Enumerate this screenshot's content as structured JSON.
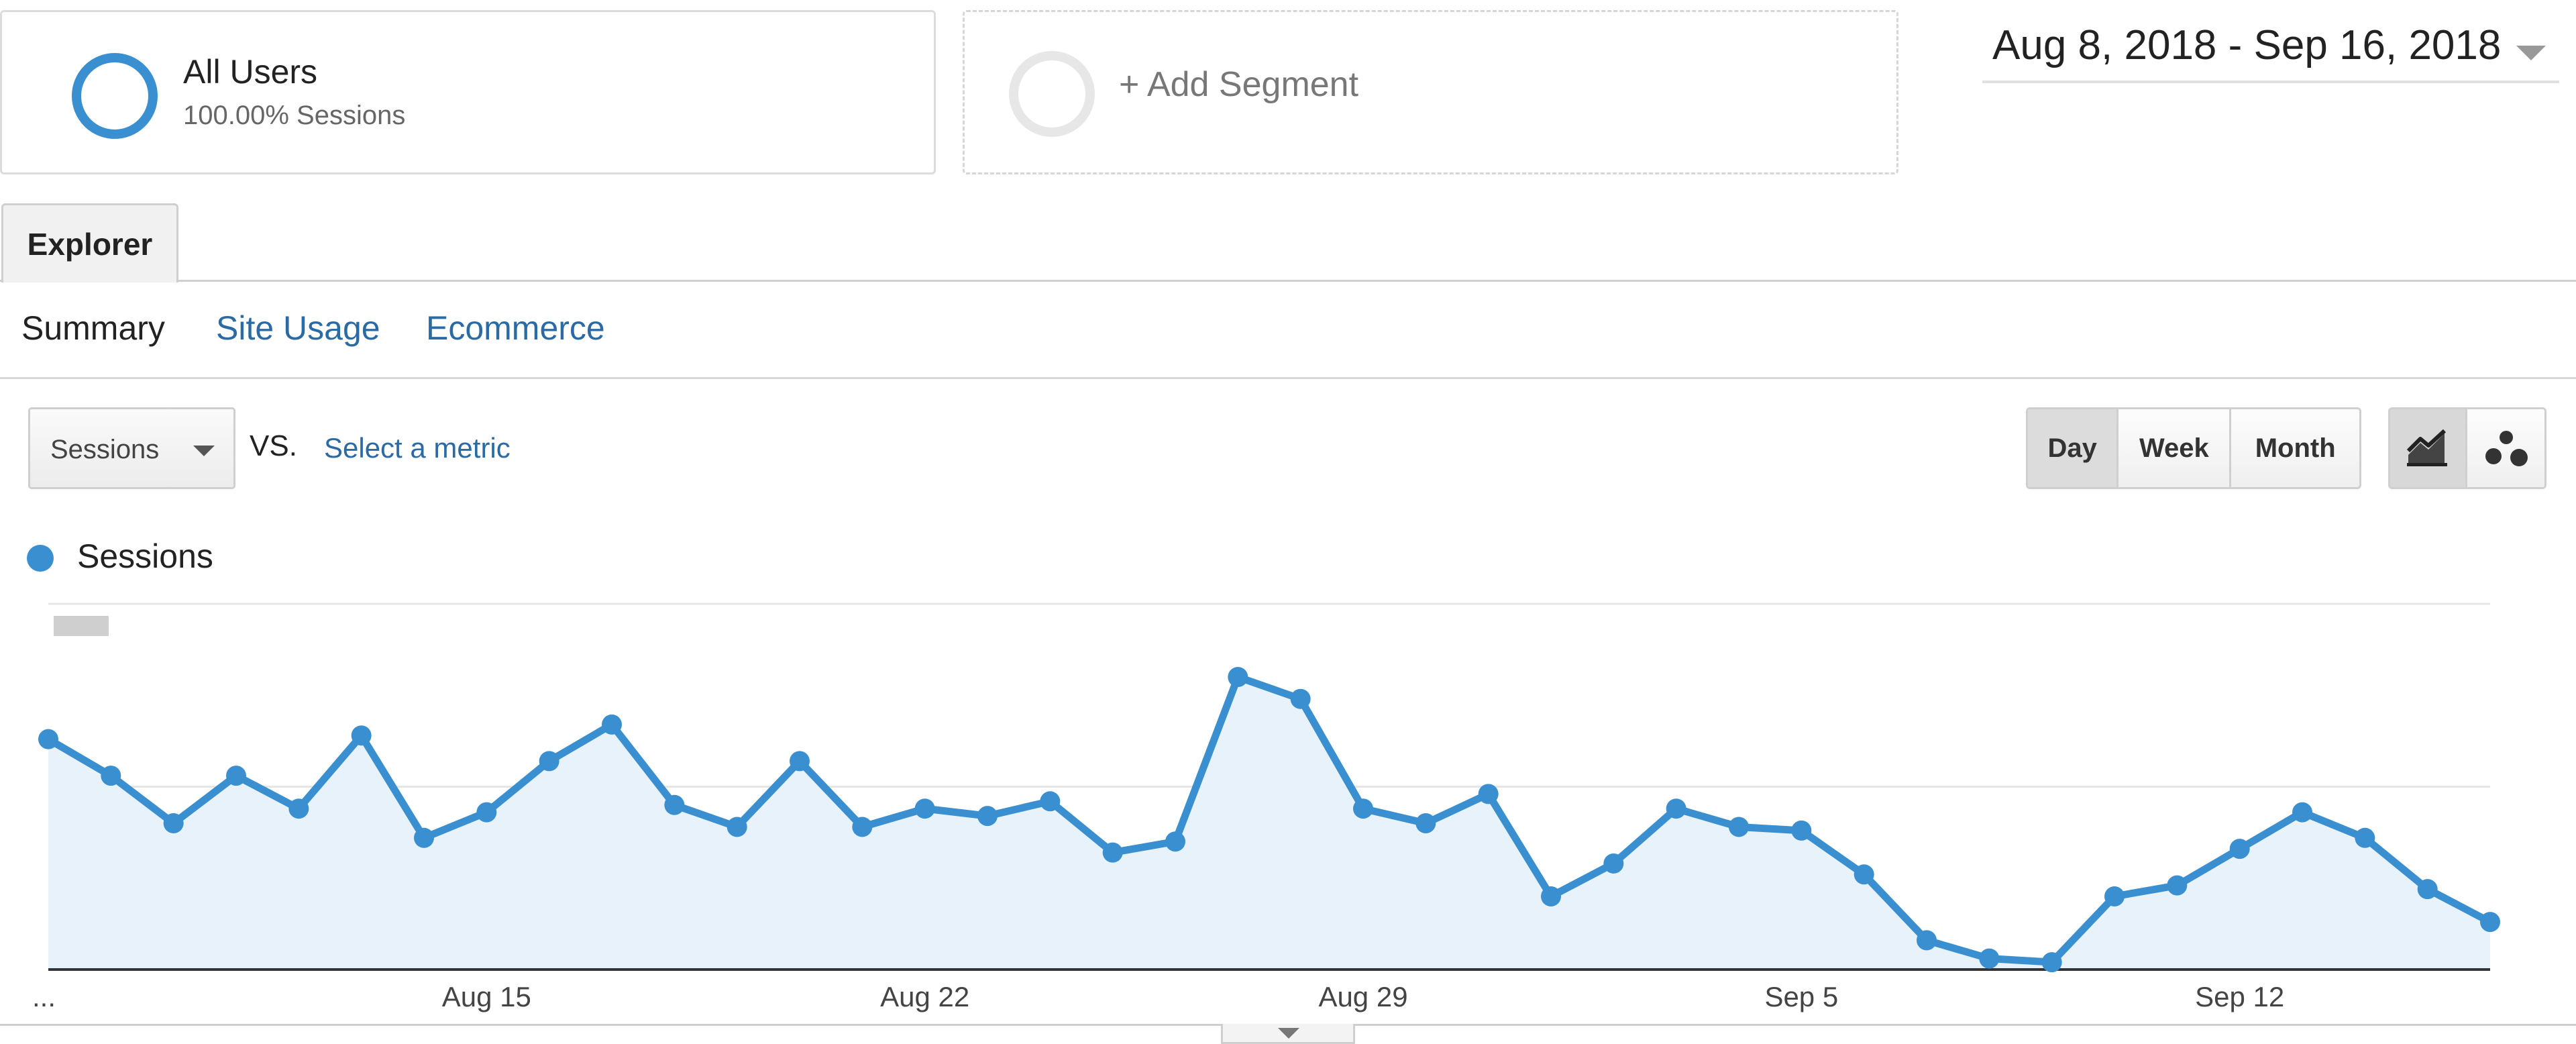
{
  "segments": {
    "all_users": {
      "title": "All Users",
      "subtitle": "100.00% Sessions"
    },
    "add_segment": {
      "label": "+ Add Segment"
    }
  },
  "date_range": {
    "label": "Aug 8, 2018 - Sep 16, 2018"
  },
  "tabs": {
    "explorer": "Explorer"
  },
  "subtabs": [
    {
      "label": "Summary",
      "active": true
    },
    {
      "label": "Site Usage",
      "active": false
    },
    {
      "label": "Ecommerce",
      "active": false
    }
  ],
  "metric_bar": {
    "primary_metric": "Sessions",
    "vs_label": "VS.",
    "select_metric": "Select a metric"
  },
  "granularity": {
    "day": "Day",
    "week": "Week",
    "month": "Month",
    "selected": "Day"
  },
  "view_modes": {
    "line_icon": "line-chart-icon",
    "motion_icon": "motion-chart-icon",
    "selected": "line"
  },
  "colors": {
    "series": "#3a8fd0",
    "area_fill": "#e8f2fa",
    "link": "#2a6aa5"
  },
  "chart_data": {
    "type": "area",
    "series": [
      {
        "name": "Sessions",
        "dates": [
          "Aug 8",
          "Aug 9",
          "Aug 10",
          "Aug 11",
          "Aug 12",
          "Aug 13",
          "Aug 14",
          "Aug 15",
          "Aug 16",
          "Aug 17",
          "Aug 18",
          "Aug 19",
          "Aug 20",
          "Aug 21",
          "Aug 22",
          "Aug 23",
          "Aug 24",
          "Aug 25",
          "Aug 26",
          "Aug 27",
          "Aug 28",
          "Aug 29",
          "Aug 30",
          "Aug 31",
          "Sep 1",
          "Sep 2",
          "Sep 3",
          "Sep 4",
          "Sep 5",
          "Sep 6",
          "Sep 7",
          "Sep 8",
          "Sep 9",
          "Sep 10",
          "Sep 11",
          "Sep 12",
          "Sep 13",
          "Sep 14",
          "Sep 15",
          "Sep 16"
        ],
        "values": [
          63,
          53,
          40,
          53,
          44,
          64,
          36,
          43,
          57,
          67,
          45,
          39,
          57,
          39,
          44,
          42,
          46,
          32,
          35,
          80,
          74,
          44,
          40,
          48,
          20,
          29,
          44,
          39,
          38,
          26,
          8,
          3,
          2,
          20,
          23,
          33,
          43,
          36,
          22,
          13
        ]
      }
    ],
    "x_tick_labels": [
      "...",
      "Aug 15",
      "Aug 22",
      "Aug 29",
      "Sep 5",
      "Sep 12"
    ],
    "x_tick_dates": [
      "Aug 8",
      "Aug 15",
      "Aug 22",
      "Aug 29",
      "Sep 5",
      "Sep 12"
    ],
    "ylim": [
      0,
      100
    ],
    "y_gridlines": [
      50,
      100
    ],
    "y_tick_labels_redacted": true,
    "grid": true,
    "legend": "top-left"
  }
}
